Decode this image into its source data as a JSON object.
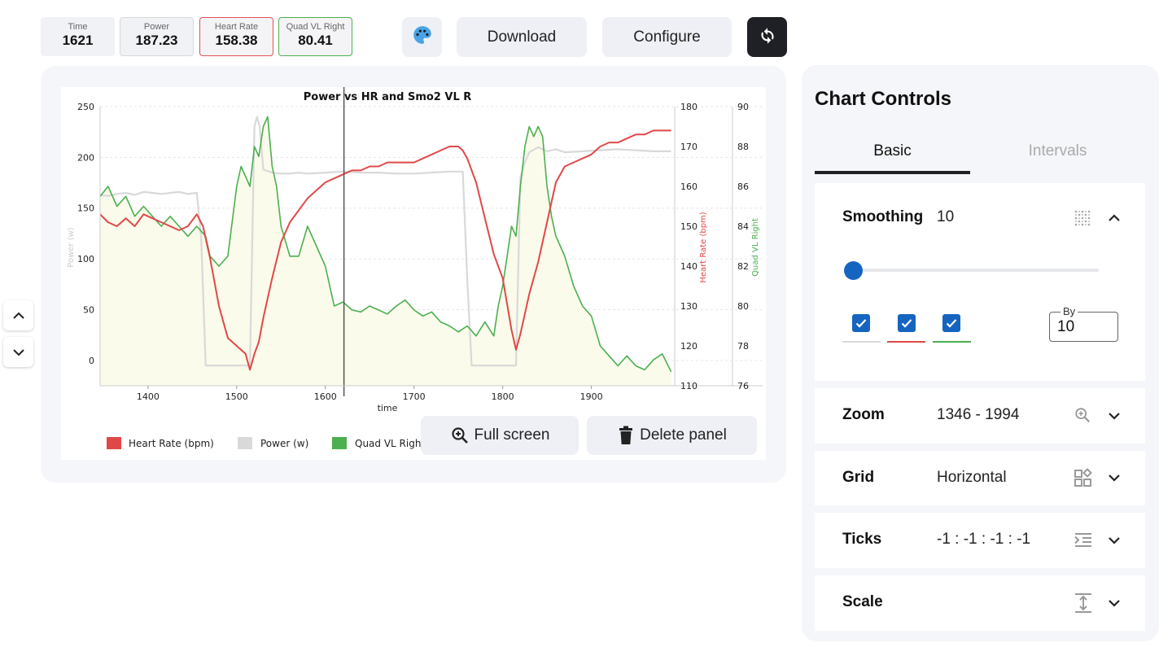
{
  "metrics": [
    {
      "label": "Time",
      "value": "1621"
    },
    {
      "label": "Power",
      "value": "187.23"
    },
    {
      "label": "Heart Rate",
      "value": "158.38"
    },
    {
      "label": "Quad VL Right",
      "value": "80.41"
    }
  ],
  "toolbar": {
    "download_label": "Download",
    "configure_label": "Configure",
    "palette_icon": "palette-icon",
    "refresh_icon": "refresh-icon"
  },
  "panel": {
    "fullscreen_label": "Full screen",
    "delete_label": "Delete panel"
  },
  "colors": {
    "hr": "#e04848",
    "power": "#d9d9d9",
    "smo2": "#4caf50",
    "fill": "#fafbea",
    "accent": "#1565c0"
  },
  "chart_data": {
    "type": "line",
    "title": "Power vs HR and Smo2 VL R",
    "xlabel": "time",
    "xlim": [
      1346,
      1994
    ],
    "x_ticks": [
      1400,
      1500,
      1600,
      1700,
      1800,
      1900
    ],
    "cursor_x": 1621,
    "grid": "horizontal",
    "legend": {
      "placement": "bottom-left",
      "entries": [
        "Heart Rate (bpm)",
        "Power (w)",
        "Quad VL Righ"
      ]
    },
    "axes": {
      "power": {
        "label": "Power (w)",
        "ylim": [
          -25,
          250
        ],
        "ticks": [
          0,
          50,
          100,
          150,
          200,
          250
        ]
      },
      "hr": {
        "label": "Heart Rate (bpm)",
        "ylim": [
          110,
          180
        ],
        "ticks": [
          110,
          120,
          130,
          140,
          150,
          160,
          170,
          180
        ]
      },
      "smo2": {
        "label": "Quad VL Right",
        "ylim": [
          76,
          90
        ],
        "ticks": [
          76,
          78,
          80,
          82,
          84,
          86,
          88,
          90
        ]
      }
    },
    "series": [
      {
        "name": "Heart Rate (bpm)",
        "axis": "hr",
        "x": [
          1346,
          1355,
          1365,
          1375,
          1385,
          1395,
          1405,
          1415,
          1425,
          1435,
          1445,
          1455,
          1462,
          1470,
          1480,
          1490,
          1500,
          1505,
          1510,
          1515,
          1520,
          1525,
          1530,
          1540,
          1550,
          1560,
          1570,
          1580,
          1590,
          1600,
          1610,
          1620,
          1630,
          1640,
          1650,
          1660,
          1670,
          1680,
          1690,
          1700,
          1710,
          1720,
          1730,
          1740,
          1750,
          1755,
          1760,
          1770,
          1780,
          1790,
          1800,
          1810,
          1815,
          1820,
          1830,
          1840,
          1850,
          1860,
          1870,
          1880,
          1890,
          1900,
          1910,
          1920,
          1930,
          1940,
          1950,
          1960,
          1970,
          1980,
          1990
        ],
        "y": [
          153,
          151,
          150,
          152,
          150,
          153,
          152,
          151,
          150,
          149,
          150,
          153,
          150,
          142,
          130,
          122,
          120,
          119,
          118,
          114,
          118,
          121,
          127,
          137,
          146,
          151,
          154,
          157,
          159,
          161,
          162,
          163,
          164,
          164,
          165,
          165,
          166,
          166,
          166,
          166,
          167,
          168,
          169,
          170,
          170,
          169,
          167,
          161,
          152,
          143,
          137,
          124,
          119,
          123,
          133,
          141,
          151,
          161,
          165,
          166,
          167,
          168,
          170,
          171,
          171,
          172,
          173,
          173,
          174,
          174,
          174
        ]
      },
      {
        "name": "Power (w)",
        "axis": "power",
        "x": [
          1346,
          1355,
          1365,
          1375,
          1385,
          1395,
          1405,
          1415,
          1425,
          1435,
          1445,
          1455,
          1460,
          1465,
          1470,
          1480,
          1490,
          1500,
          1510,
          1515,
          1520,
          1523,
          1526,
          1530,
          1540,
          1550,
          1560,
          1570,
          1580,
          1600,
          1620,
          1640,
          1660,
          1680,
          1700,
          1720,
          1740,
          1755,
          1760,
          1765,
          1770,
          1780,
          1800,
          1810,
          1815,
          1820,
          1825,
          1830,
          1840,
          1850,
          1860,
          1870,
          1890,
          1910,
          1930,
          1950,
          1970,
          1990
        ],
        "y": [
          163,
          162,
          164,
          165,
          163,
          166,
          165,
          164,
          165,
          166,
          164,
          165,
          120,
          -5,
          -5,
          -5,
          -5,
          -5,
          -5,
          -5,
          230,
          240,
          230,
          188,
          185,
          184,
          184,
          185,
          184,
          185,
          186,
          185,
          185,
          184,
          184,
          185,
          186,
          186,
          80,
          -5,
          -5,
          -5,
          -5,
          -5,
          -5,
          180,
          195,
          205,
          210,
          206,
          208,
          205,
          206,
          207,
          208,
          207,
          206,
          206
        ]
      },
      {
        "name": "Quad VL Right",
        "axis": "smo2",
        "x": [
          1346,
          1355,
          1365,
          1375,
          1385,
          1395,
          1405,
          1415,
          1425,
          1435,
          1445,
          1455,
          1465,
          1470,
          1480,
          1490,
          1500,
          1505,
          1510,
          1515,
          1520,
          1525,
          1530,
          1535,
          1540,
          1545,
          1550,
          1560,
          1570,
          1580,
          1590,
          1600,
          1610,
          1620,
          1630,
          1640,
          1650,
          1660,
          1670,
          1680,
          1690,
          1700,
          1710,
          1720,
          1730,
          1740,
          1750,
          1760,
          1770,
          1780,
          1790,
          1795,
          1800,
          1805,
          1810,
          1815,
          1820,
          1825,
          1830,
          1835,
          1840,
          1845,
          1850,
          1855,
          1860,
          1865,
          1870,
          1880,
          1890,
          1900,
          1910,
          1920,
          1930,
          1940,
          1950,
          1960,
          1970,
          1980,
          1990
        ],
        "y": [
          85.5,
          86,
          85,
          85.5,
          84.5,
          85,
          84.5,
          84,
          84.5,
          84,
          83.5,
          84,
          83.5,
          82.5,
          82,
          82.5,
          86,
          87,
          86.5,
          86,
          88,
          87.5,
          89,
          89.5,
          87,
          86,
          84,
          82.5,
          82.5,
          84,
          83,
          82,
          80,
          80.2,
          79.8,
          79.7,
          80,
          79.8,
          79.6,
          80,
          80.3,
          79.8,
          79.5,
          79.7,
          79.2,
          79,
          78.7,
          79,
          78.5,
          79.2,
          78.5,
          80,
          81,
          82.5,
          84,
          83.5,
          86,
          88,
          89,
          88.5,
          89,
          88.5,
          86,
          84.5,
          83.5,
          83,
          82.5,
          81,
          80,
          79.5,
          78,
          77.5,
          77,
          77.5,
          77,
          76.8,
          77.3,
          77.6,
          76.7
        ]
      }
    ]
  },
  "controls": {
    "title": "Chart Controls",
    "tabs": [
      "Basic",
      "Intervals"
    ],
    "smoothing": {
      "label": "Smoothing",
      "value": "10",
      "by_label": "By",
      "by_value": "10",
      "slider_fraction": 0.04
    },
    "zoom": {
      "label": "Zoom",
      "value": "1346 - 1994"
    },
    "grid": {
      "label": "Grid",
      "value": "Horizontal"
    },
    "ticks": {
      "label": "Ticks",
      "value": "-1 : -1 : -1 : -1"
    },
    "scale": {
      "label": "Scale",
      "value": ""
    }
  }
}
